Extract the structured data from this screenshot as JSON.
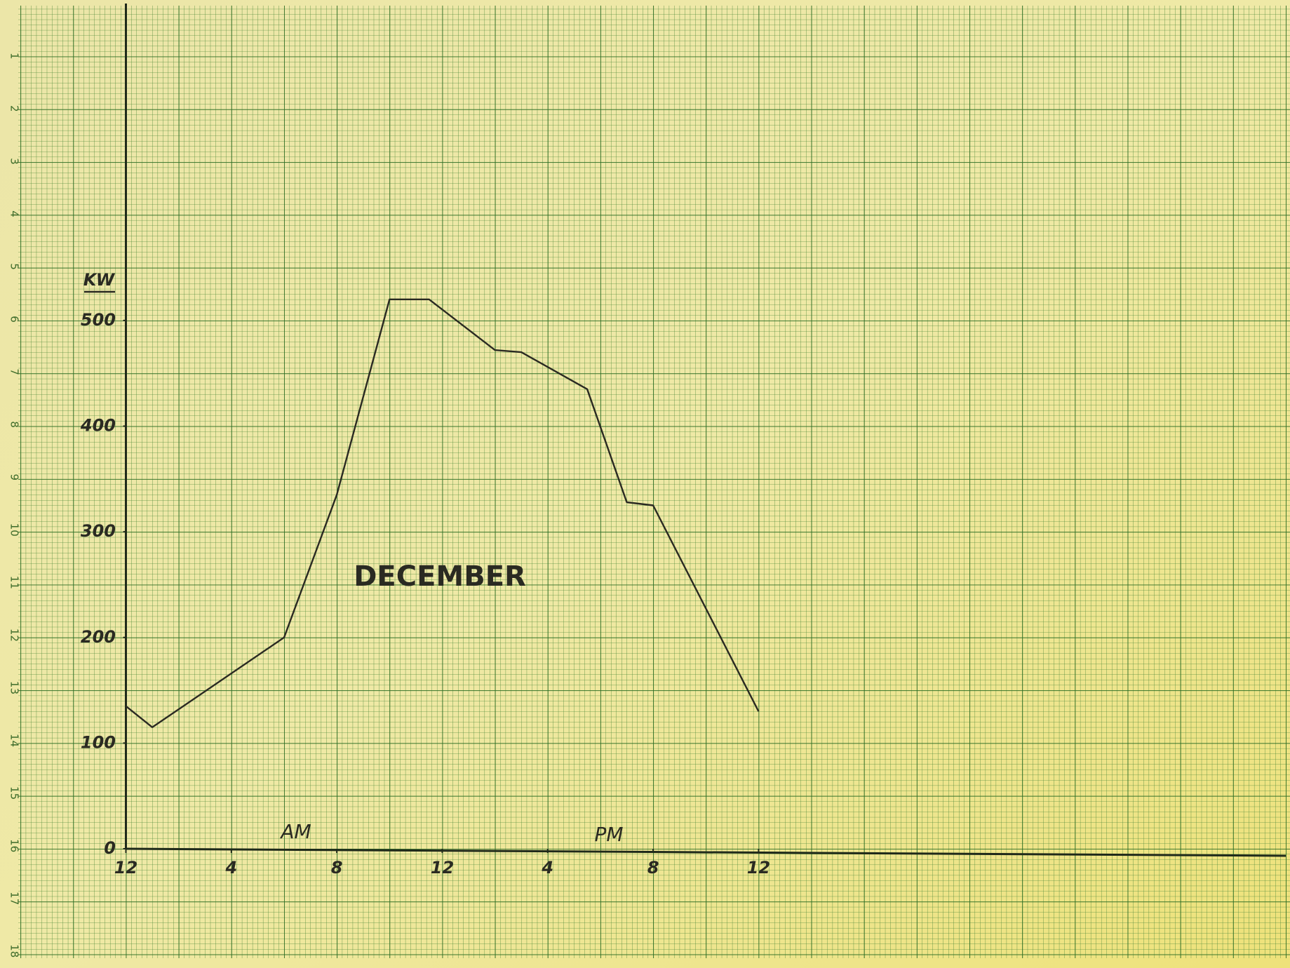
{
  "chart_data": {
    "type": "line",
    "title": "DECEMBER",
    "y_label": "KW",
    "annotations": [
      "AM",
      "PM"
    ],
    "x": [
      0,
      1,
      6,
      8,
      10,
      11.5,
      14,
      15,
      17.5,
      19,
      20,
      24
    ],
    "series": [
      {
        "name": "DECEMBER",
        "color": "#2a2a22",
        "values": [
          135,
          115,
          200,
          335,
          520,
          520,
          472,
          470,
          435,
          328,
          325,
          130
        ]
      }
    ],
    "xlim": [
      0,
      44
    ],
    "ylim": [
      0,
      800
    ],
    "xticks": [
      {
        "value": 0,
        "label": "12"
      },
      {
        "value": 4,
        "label": "4"
      },
      {
        "value": 8,
        "label": "8"
      },
      {
        "value": 12,
        "label": "12"
      },
      {
        "value": 16,
        "label": "4"
      },
      {
        "value": 20,
        "label": "8"
      },
      {
        "value": 24,
        "label": "12"
      }
    ],
    "yticks": [
      0,
      100,
      200,
      300,
      400,
      500
    ],
    "grid": true
  },
  "paper": {
    "row_numbers": [
      "1",
      "2",
      "3",
      "4",
      "5",
      "6",
      "7",
      "8",
      "9",
      "10",
      "11",
      "12",
      "13",
      "14",
      "15",
      "16",
      "17",
      "18"
    ]
  }
}
